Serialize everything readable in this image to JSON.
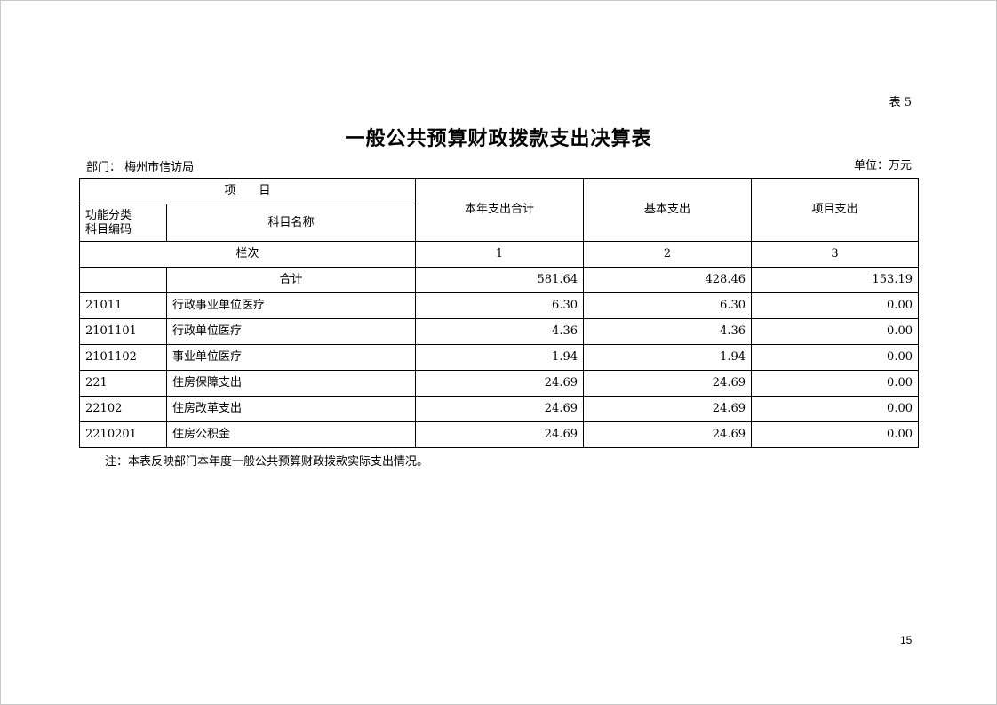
{
  "table_no": "表 5",
  "title": "一般公共预算财政拨款支出决算表",
  "department": "部门：  梅州市信访局",
  "unit": "单位：万元",
  "header": {
    "item": "项　　目",
    "code": "功能分类\n科目编码",
    "code_line1": "功能分类",
    "code_line2": "科目编码",
    "name": "科目名称",
    "total": "本年支出合计",
    "basic": "基本支出",
    "project": "项目支出",
    "column_label": "栏次",
    "col1": "1",
    "col2": "2",
    "col3": "3"
  },
  "total_row": {
    "label": "合计",
    "total": "581.64",
    "basic": "428.46",
    "project": "153.19"
  },
  "rows": [
    {
      "code": "21011",
      "name": "行政事业单位医疗",
      "total": "6.30",
      "basic": "6.30",
      "project": "0.00"
    },
    {
      "code": "2101101",
      "name": "行政单位医疗",
      "total": "4.36",
      "basic": "4.36",
      "project": "0.00"
    },
    {
      "code": "2101102",
      "name": "事业单位医疗",
      "total": "1.94",
      "basic": "1.94",
      "project": "0.00"
    },
    {
      "code": "221",
      "name": "住房保障支出",
      "total": "24.69",
      "basic": "24.69",
      "project": "0.00"
    },
    {
      "code": "22102",
      "name": "住房改革支出",
      "total": "24.69",
      "basic": "24.69",
      "project": "0.00"
    },
    {
      "code": "2210201",
      "name": "住房公积金",
      "total": "24.69",
      "basic": "24.69",
      "project": "0.00"
    }
  ],
  "note": "注：本表反映部门本年度一般公共预算财政拨款实际支出情况。",
  "page_number": "15"
}
